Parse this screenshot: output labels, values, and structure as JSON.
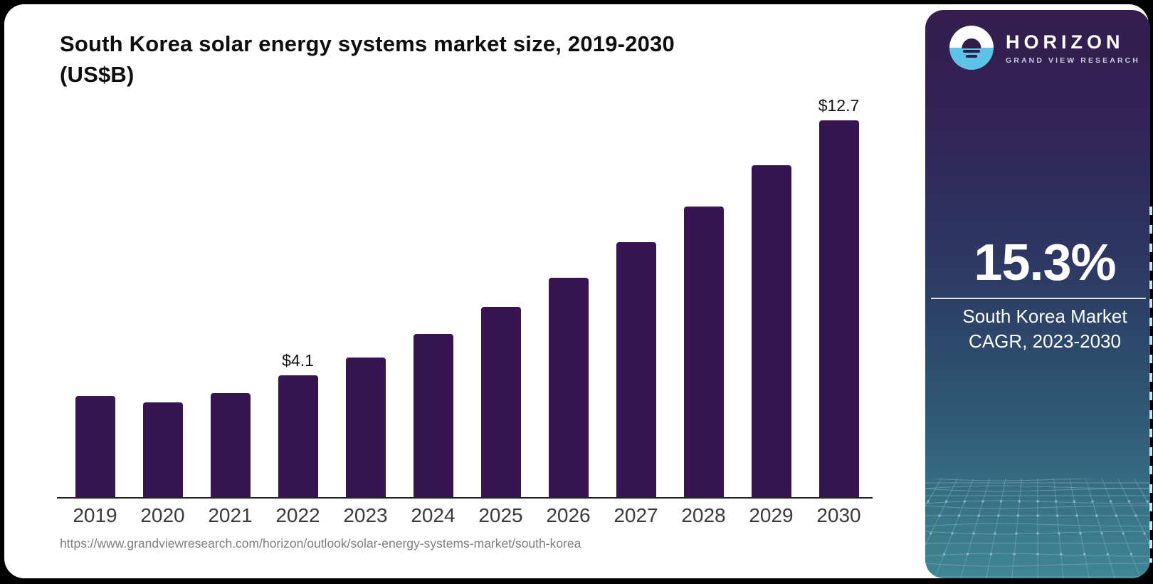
{
  "header": {
    "title_line1": "South Korea solar energy systems market size, 2019-2030",
    "title_line2": "(US$B)"
  },
  "chart_data": {
    "type": "bar",
    "title": "South Korea solar energy systems market size, 2019-2030 (US$B)",
    "categories": [
      "2019",
      "2020",
      "2021",
      "2022",
      "2023",
      "2024",
      "2025",
      "2026",
      "2027",
      "2028",
      "2029",
      "2030"
    ],
    "values": [
      3.4,
      3.2,
      3.5,
      4.1,
      4.7,
      5.5,
      6.4,
      7.4,
      8.6,
      9.8,
      11.2,
      12.7
    ],
    "unit": "US$B",
    "xlabel": "",
    "ylabel": "",
    "ylim": [
      0,
      13.5
    ],
    "grid": false,
    "legend": "none",
    "bar_color": "#371553",
    "data_labels": {
      "2022": "$4.1",
      "2030": "$12.7"
    }
  },
  "sidebar": {
    "logo": {
      "icon": "horizon-sun-icon",
      "brand": "HORIZON",
      "sub_brand": "GRAND VIEW RESEARCH"
    },
    "stat": {
      "value": "15.3%",
      "label_line1": "South Korea Market",
      "label_line2": "CAGR, 2023-2030"
    },
    "colors": {
      "gradient_top": "#331e4d",
      "gradient_bottom": "#408694",
      "logo_blue": "#5ec3e8",
      "text": "#ffffff"
    }
  },
  "footer": {
    "source_url": "https://www.grandviewresearch.com/horizon/outlook/solar-energy-systems-market/south-korea"
  }
}
